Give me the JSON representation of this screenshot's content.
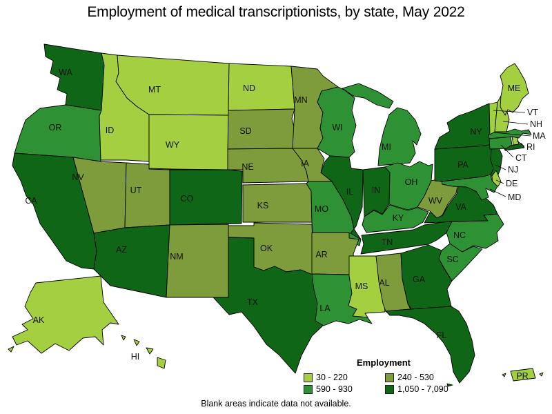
{
  "title": "Employment of medical transcriptionists, by state, May 2022",
  "footer_note": "Blank areas indicate data not available.",
  "chart_data": {
    "type": "heatmap",
    "subtype": "us-state-choropleth",
    "title": "Employment of medical transcriptionists, by state, May 2022",
    "legend_title": "Employment",
    "legend_position": "bottom-center",
    "note": "Blank areas indicate data not available.",
    "bins": [
      {
        "label": "30 - 220",
        "color": "#A3CF40"
      },
      {
        "label": "240 - 530",
        "color": "#7E9C3B"
      },
      {
        "label": "590 - 930",
        "color": "#2E9134"
      },
      {
        "label": "1,050 - 7,090",
        "color": "#0E6616"
      }
    ],
    "states": [
      {
        "code": "WA",
        "bin": 3
      },
      {
        "code": "OR",
        "bin": 2
      },
      {
        "code": "CA",
        "bin": 3
      },
      {
        "code": "ID",
        "bin": 0
      },
      {
        "code": "NV",
        "bin": 1
      },
      {
        "code": "MT",
        "bin": 0
      },
      {
        "code": "WY",
        "bin": 0
      },
      {
        "code": "UT",
        "bin": 1
      },
      {
        "code": "CO",
        "bin": 3
      },
      {
        "code": "AZ",
        "bin": 3
      },
      {
        "code": "NM",
        "bin": 1
      },
      {
        "code": "ND",
        "bin": 0
      },
      {
        "code": "SD",
        "bin": 1
      },
      {
        "code": "NE",
        "bin": 1
      },
      {
        "code": "KS",
        "bin": 1
      },
      {
        "code": "OK",
        "bin": 1
      },
      {
        "code": "TX",
        "bin": 3
      },
      {
        "code": "MN",
        "bin": 1
      },
      {
        "code": "IA",
        "bin": 1
      },
      {
        "code": "MO",
        "bin": 2
      },
      {
        "code": "AR",
        "bin": 1
      },
      {
        "code": "LA",
        "bin": 2
      },
      {
        "code": "WI",
        "bin": 2
      },
      {
        "code": "IL",
        "bin": 3
      },
      {
        "code": "MI",
        "bin": 2
      },
      {
        "code": "IN",
        "bin": 3
      },
      {
        "code": "OH",
        "bin": 2
      },
      {
        "code": "KY",
        "bin": 2
      },
      {
        "code": "TN",
        "bin": 3
      },
      {
        "code": "MS",
        "bin": 0
      },
      {
        "code": "AL",
        "bin": 1
      },
      {
        "code": "GA",
        "bin": 3
      },
      {
        "code": "FL",
        "bin": 3
      },
      {
        "code": "SC",
        "bin": 2
      },
      {
        "code": "NC",
        "bin": 2
      },
      {
        "code": "VA",
        "bin": 3
      },
      {
        "code": "WV",
        "bin": 1
      },
      {
        "code": "PA",
        "bin": 3
      },
      {
        "code": "NY",
        "bin": 3
      },
      {
        "code": "NJ",
        "bin": 3
      },
      {
        "code": "DE",
        "bin": 0
      },
      {
        "code": "MD",
        "bin": 2
      },
      {
        "code": "CT",
        "bin": 2
      },
      {
        "code": "RI",
        "bin": 0
      },
      {
        "code": "MA",
        "bin": 2
      },
      {
        "code": "VT",
        "bin": 0
      },
      {
        "code": "NH",
        "bin": 0
      },
      {
        "code": "ME",
        "bin": 0
      },
      {
        "code": "AK",
        "bin": 0
      },
      {
        "code": "HI",
        "bin": 0
      },
      {
        "code": "PR",
        "bin": 0
      }
    ]
  }
}
